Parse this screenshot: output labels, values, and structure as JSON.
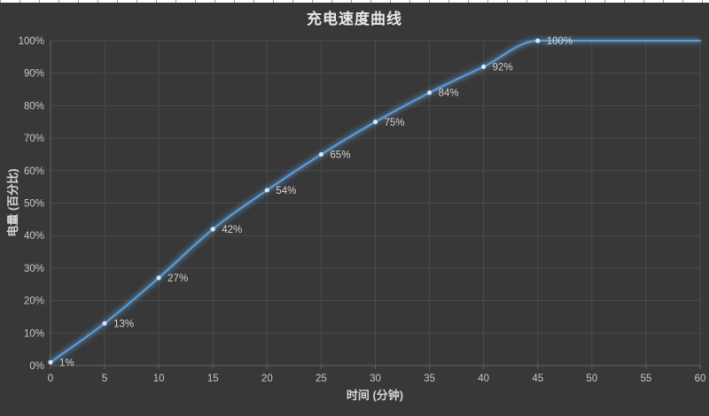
{
  "chart_data": {
    "type": "line",
    "title": "充电速度曲线",
    "xlabel": "时间 (分钟)",
    "ylabel": "电量 (百分比)",
    "x": [
      0,
      5,
      10,
      15,
      20,
      25,
      30,
      35,
      40,
      45
    ],
    "values": [
      1,
      13,
      27,
      42,
      54,
      65,
      75,
      84,
      92,
      100
    ],
    "point_labels": [
      "1%",
      "13%",
      "27%",
      "42%",
      "54%",
      "65%",
      "75%",
      "84%",
      "92%",
      "100%"
    ],
    "flat_tail": {
      "x": [
        50,
        55,
        60
      ],
      "value": 100
    },
    "xlim": [
      0,
      60
    ],
    "ylim": [
      0,
      100
    ],
    "x_tick_labels": [
      "0",
      "5",
      "10",
      "15",
      "20",
      "25",
      "30",
      "35",
      "40",
      "45",
      "50",
      "55",
      "60"
    ],
    "y_tick_labels": [
      "0%",
      "10%",
      "20%",
      "30%",
      "40%",
      "50%",
      "60%",
      "70%",
      "80%",
      "90%",
      "100%"
    ],
    "grid": true,
    "legend": "none",
    "smooth": true,
    "colors": {
      "background": "#383838",
      "gridline": "#4B4B4B",
      "axis": "#646464",
      "tick_text": "#C9C9C9",
      "label_text": "#D5D5D5",
      "title_text": "#E8E8E8",
      "line": "#5B9BD5",
      "line_glow": "#5B9BD5",
      "marker": "#D8E6F5",
      "top_strip_bg": "#FFFFFF",
      "top_strip_tick": "#9A9A9A"
    }
  }
}
